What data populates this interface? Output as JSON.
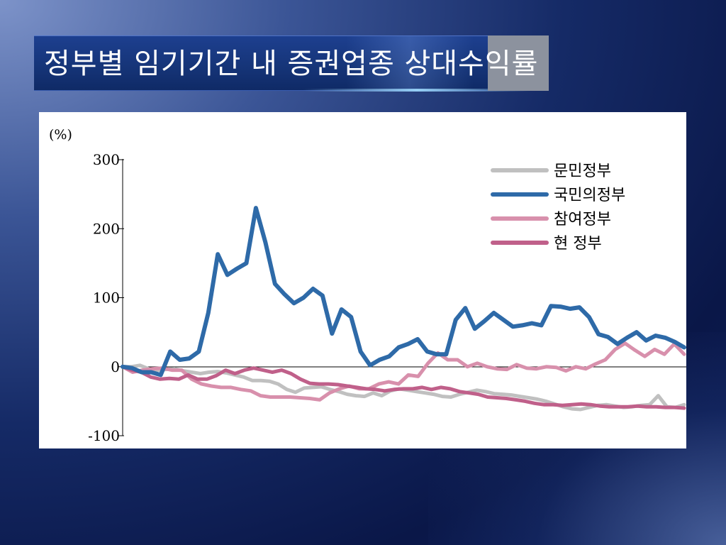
{
  "slide": {
    "title": "정부별 임기기간 내 증권업종 상대수익률"
  },
  "chart_data": {
    "type": "line",
    "ylabel": "(%)",
    "ylim": [
      -100,
      300
    ],
    "yticks": [
      {
        "value": 300,
        "label": "300"
      },
      {
        "value": 200,
        "label": "200"
      },
      {
        "value": 100,
        "label": "100"
      },
      {
        "value": 0,
        "label": "0"
      },
      {
        "value": -100,
        "label": "-100"
      }
    ],
    "legend_position": "top-right",
    "grid": false,
    "series": [
      {
        "name": "문민정부",
        "color": "#c0c0c0",
        "values": [
          0,
          0,
          2,
          -3,
          -5,
          -4,
          -3,
          -6,
          -8,
          -10,
          -8,
          -7,
          -9,
          -12,
          -15,
          -20,
          -20,
          -21,
          -25,
          -33,
          -37,
          -31,
          -30,
          -29,
          -33,
          -36,
          -40,
          -42,
          -43,
          -38,
          -42,
          -35,
          -32,
          -34,
          -36,
          -38,
          -40,
          -43,
          -44,
          -40,
          -37,
          -34,
          -36,
          -39,
          -40,
          -41,
          -43,
          -45,
          -47,
          -50,
          -54,
          -58,
          -61,
          -62,
          -59,
          -56,
          -55,
          -57,
          -59,
          -58,
          -56,
          -55,
          -42,
          -58,
          -59,
          -55
        ]
      },
      {
        "name": "국민의정부",
        "color": "#2e6aa8",
        "values": [
          0,
          -2,
          -8,
          -8,
          -12,
          22,
          10,
          12,
          22,
          78,
          163,
          133,
          142,
          150,
          230,
          180,
          120,
          105,
          92,
          100,
          113,
          103,
          48,
          83,
          72,
          22,
          2,
          10,
          15,
          28,
          33,
          40,
          22,
          18,
          18,
          68,
          85,
          55,
          66,
          78,
          68,
          58,
          60,
          63,
          60,
          88,
          87,
          84,
          86,
          72,
          47,
          43,
          33,
          42,
          50,
          38,
          45,
          42,
          36,
          28
        ]
      },
      {
        "name": "참여정부",
        "color": "#d890ac",
        "values": [
          0,
          -8,
          -5,
          -3,
          -2,
          -5,
          -5,
          -18,
          -25,
          -28,
          -30,
          -30,
          -33,
          -35,
          -42,
          -44,
          -44,
          -44,
          -45,
          -46,
          -48,
          -38,
          -32,
          -28,
          -32,
          -32,
          -25,
          -22,
          -25,
          -12,
          -14,
          5,
          20,
          10,
          10,
          0,
          5,
          0,
          -3,
          -4,
          3,
          -2,
          -3,
          0,
          -1,
          -6,
          0,
          -3,
          4,
          10,
          25,
          34,
          24,
          15,
          25,
          18,
          33,
          18
        ]
      },
      {
        "name": "현 정부",
        "color": "#c0608a",
        "values": [
          0,
          -5,
          -8,
          -15,
          -18,
          -17,
          -18,
          -12,
          -18,
          -18,
          -13,
          -5,
          -10,
          -5,
          -2,
          -5,
          -8,
          -5,
          -10,
          -18,
          -24,
          -25,
          -25,
          -26,
          -28,
          -30,
          -32,
          -33,
          -35,
          -33,
          -32,
          -32,
          -30,
          -33,
          -30,
          -32,
          -36,
          -38,
          -40,
          -44,
          -45,
          -46,
          -48,
          -50,
          -53,
          -55,
          -55,
          -56,
          -55,
          -54,
          -55,
          -57,
          -58,
          -58,
          -58,
          -57,
          -58,
          -58,
          -59,
          -59,
          -60
        ]
      }
    ]
  }
}
